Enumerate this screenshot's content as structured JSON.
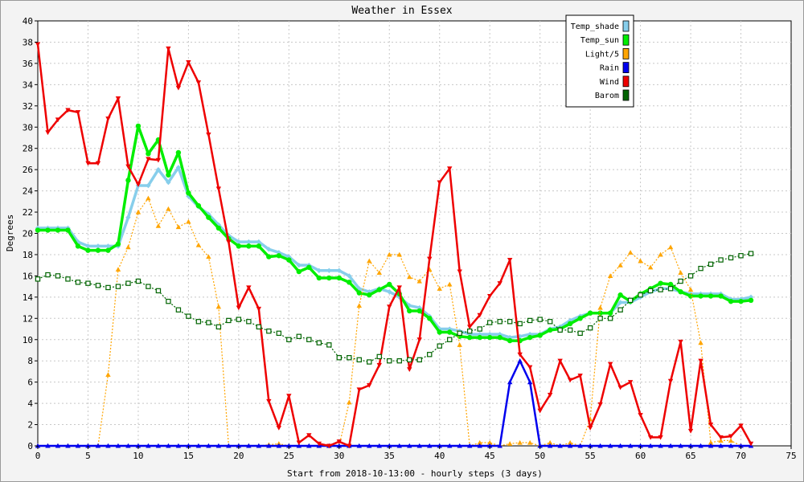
{
  "chart_data": {
    "type": "line",
    "title": "Weather in Essex",
    "xlabel": "Start from 2018-10-13:00 - hourly steps (3 days)",
    "ylabel": "Degrees",
    "xlim": [
      0,
      75
    ],
    "ylim": [
      0,
      40
    ],
    "x_ticks": [
      0,
      5,
      10,
      15,
      20,
      25,
      30,
      35,
      40,
      45,
      50,
      55,
      60,
      65,
      70,
      75
    ],
    "y_ticks": [
      0,
      2,
      4,
      6,
      8,
      10,
      12,
      14,
      16,
      18,
      20,
      22,
      24,
      26,
      28,
      30,
      32,
      34,
      36,
      38,
      40
    ],
    "grid": true,
    "legend_position": "top-right",
    "series": [
      {
        "name": "Temp_shade",
        "color": "#87ceeb",
        "marker": "diamond",
        "values": [
          20.5,
          20.5,
          20.5,
          20.5,
          19.2,
          18.8,
          18.8,
          18.8,
          18.8,
          21.5,
          24.5,
          24.5,
          26.0,
          24.8,
          26.2,
          23.5,
          22.5,
          21.8,
          20.8,
          19.8,
          19.2,
          19.2,
          19.2,
          18.5,
          18.2,
          17.8,
          17.0,
          17.0,
          16.5,
          16.5,
          16.5,
          16.0,
          14.8,
          14.5,
          14.8,
          14.5,
          14.0,
          13.2,
          13.0,
          12.2,
          11.0,
          11.0,
          10.8,
          10.5,
          10.5,
          10.5,
          10.5,
          10.2,
          10.3,
          10.5,
          10.5,
          11.0,
          11.2,
          11.8,
          12.2,
          12.5,
          12.5,
          12.5,
          13.5,
          13.5,
          14.0,
          14.5,
          14.8,
          14.8,
          14.5,
          14.3,
          14.3,
          14.3,
          14.3,
          13.8,
          13.8,
          14.0
        ]
      },
      {
        "name": "Temp_sun",
        "color": "#00ee00",
        "marker": "circle",
        "values": [
          20.3,
          20.3,
          20.3,
          20.3,
          18.8,
          18.4,
          18.4,
          18.4,
          19.0,
          25.0,
          30.1,
          27.5,
          28.8,
          25.5,
          27.6,
          23.8,
          22.6,
          21.5,
          20.5,
          19.5,
          18.8,
          18.8,
          18.8,
          17.8,
          17.9,
          17.5,
          16.4,
          16.8,
          15.8,
          15.8,
          15.8,
          15.4,
          14.4,
          14.2,
          14.7,
          15.2,
          14.3,
          12.7,
          12.7,
          12.0,
          10.7,
          10.7,
          10.3,
          10.2,
          10.2,
          10.2,
          10.2,
          9.9,
          9.9,
          10.2,
          10.4,
          10.9,
          11.0,
          11.5,
          12.0,
          12.5,
          12.5,
          12.5,
          14.2,
          13.6,
          14.3,
          14.8,
          15.3,
          15.2,
          14.5,
          14.1,
          14.1,
          14.1,
          14.1,
          13.6,
          13.6,
          13.7
        ]
      },
      {
        "name": "Light/5",
        "color": "#ffa500",
        "marker": "triangle-up",
        "values": [
          0,
          0,
          0,
          0,
          0,
          0,
          0,
          6.7,
          16.6,
          18.7,
          22.0,
          23.3,
          20.7,
          22.3,
          20.6,
          21.1,
          18.9,
          17.8,
          13.1,
          0,
          0,
          0,
          0,
          0.1,
          0.2,
          0,
          0,
          0,
          0,
          0,
          0,
          4.1,
          13.2,
          17.4,
          16.3,
          18.0,
          18.0,
          15.9,
          15.5,
          16.6,
          14.8,
          15.2,
          9.5,
          0,
          0.3,
          0.3,
          0,
          0.2,
          0.3,
          0.3,
          0,
          0.3,
          0,
          0.3,
          0,
          2.5,
          13.0,
          16.0,
          17.0,
          18.2,
          17.4,
          16.8,
          18.0,
          18.7,
          16.3,
          14.7,
          9.7,
          0.3,
          0.5,
          0.5,
          0,
          0
        ]
      },
      {
        "name": "Rain",
        "color": "#0000ee",
        "marker": "triangle-up",
        "values": [
          0,
          0,
          0,
          0,
          0,
          0,
          0,
          0,
          0,
          0,
          0,
          0,
          0,
          0,
          0,
          0,
          0,
          0,
          0,
          0,
          0,
          0,
          0,
          0,
          0,
          0,
          0,
          0,
          0,
          0,
          0,
          0,
          0,
          0,
          0,
          0,
          0,
          0,
          0,
          0,
          0,
          0,
          0,
          0,
          0,
          0,
          0,
          6.0,
          8.0,
          6.0,
          0,
          0,
          0,
          0,
          0,
          0,
          0,
          0,
          0,
          0,
          0,
          0,
          0,
          0,
          0,
          0,
          0,
          0,
          0,
          0,
          0,
          0
        ]
      },
      {
        "name": "Wind",
        "color": "#ee0000",
        "marker": "triangle-down",
        "values": [
          37.8,
          29.5,
          30.7,
          31.6,
          31.4,
          26.6,
          26.6,
          30.8,
          32.7,
          26.3,
          24.6,
          27.0,
          26.9,
          37.4,
          33.7,
          36.1,
          34.2,
          29.3,
          24.2,
          19.2,
          13.0,
          14.9,
          12.9,
          4.2,
          1.7,
          4.7,
          0.3,
          1.0,
          0.2,
          0,
          0.4,
          0,
          5.3,
          5.7,
          7.6,
          13.1,
          14.9,
          7.2,
          10.0,
          17.6,
          24.8,
          26.1,
          16.4,
          11.2,
          12.3,
          14.1,
          15.3,
          17.5,
          8.6,
          7.4,
          3.3,
          4.8,
          8.0,
          6.2,
          6.6,
          1.7,
          3.9,
          7.7,
          5.5,
          6.0,
          2.9,
          0.8,
          0.8,
          6.1,
          9.8,
          1.4,
          8.0,
          2.0,
          0.8,
          0.9,
          1.9,
          0.2
        ]
      },
      {
        "name": "Barom",
        "color": "#006400",
        "marker": "square-open",
        "values": [
          15.7,
          16.1,
          16.0,
          15.7,
          15.4,
          15.3,
          15.1,
          14.9,
          15.0,
          15.3,
          15.5,
          15.0,
          14.6,
          13.6,
          12.8,
          12.2,
          11.7,
          11.6,
          11.2,
          11.8,
          11.9,
          11.7,
          11.2,
          10.8,
          10.6,
          10.0,
          10.3,
          10.0,
          9.7,
          9.5,
          8.3,
          8.3,
          8.1,
          7.9,
          8.4,
          8.0,
          8.0,
          8.1,
          8.1,
          8.6,
          9.4,
          10.0,
          10.6,
          10.8,
          11.0,
          11.6,
          11.7,
          11.7,
          11.5,
          11.8,
          11.9,
          11.7,
          10.9,
          10.9,
          10.6,
          11.1,
          12.0,
          12.0,
          12.8,
          13.7,
          14.2,
          14.6,
          14.7,
          14.8,
          15.5,
          16.0,
          16.7,
          17.1,
          17.5,
          17.7,
          17.9,
          18.1
        ]
      }
    ]
  }
}
